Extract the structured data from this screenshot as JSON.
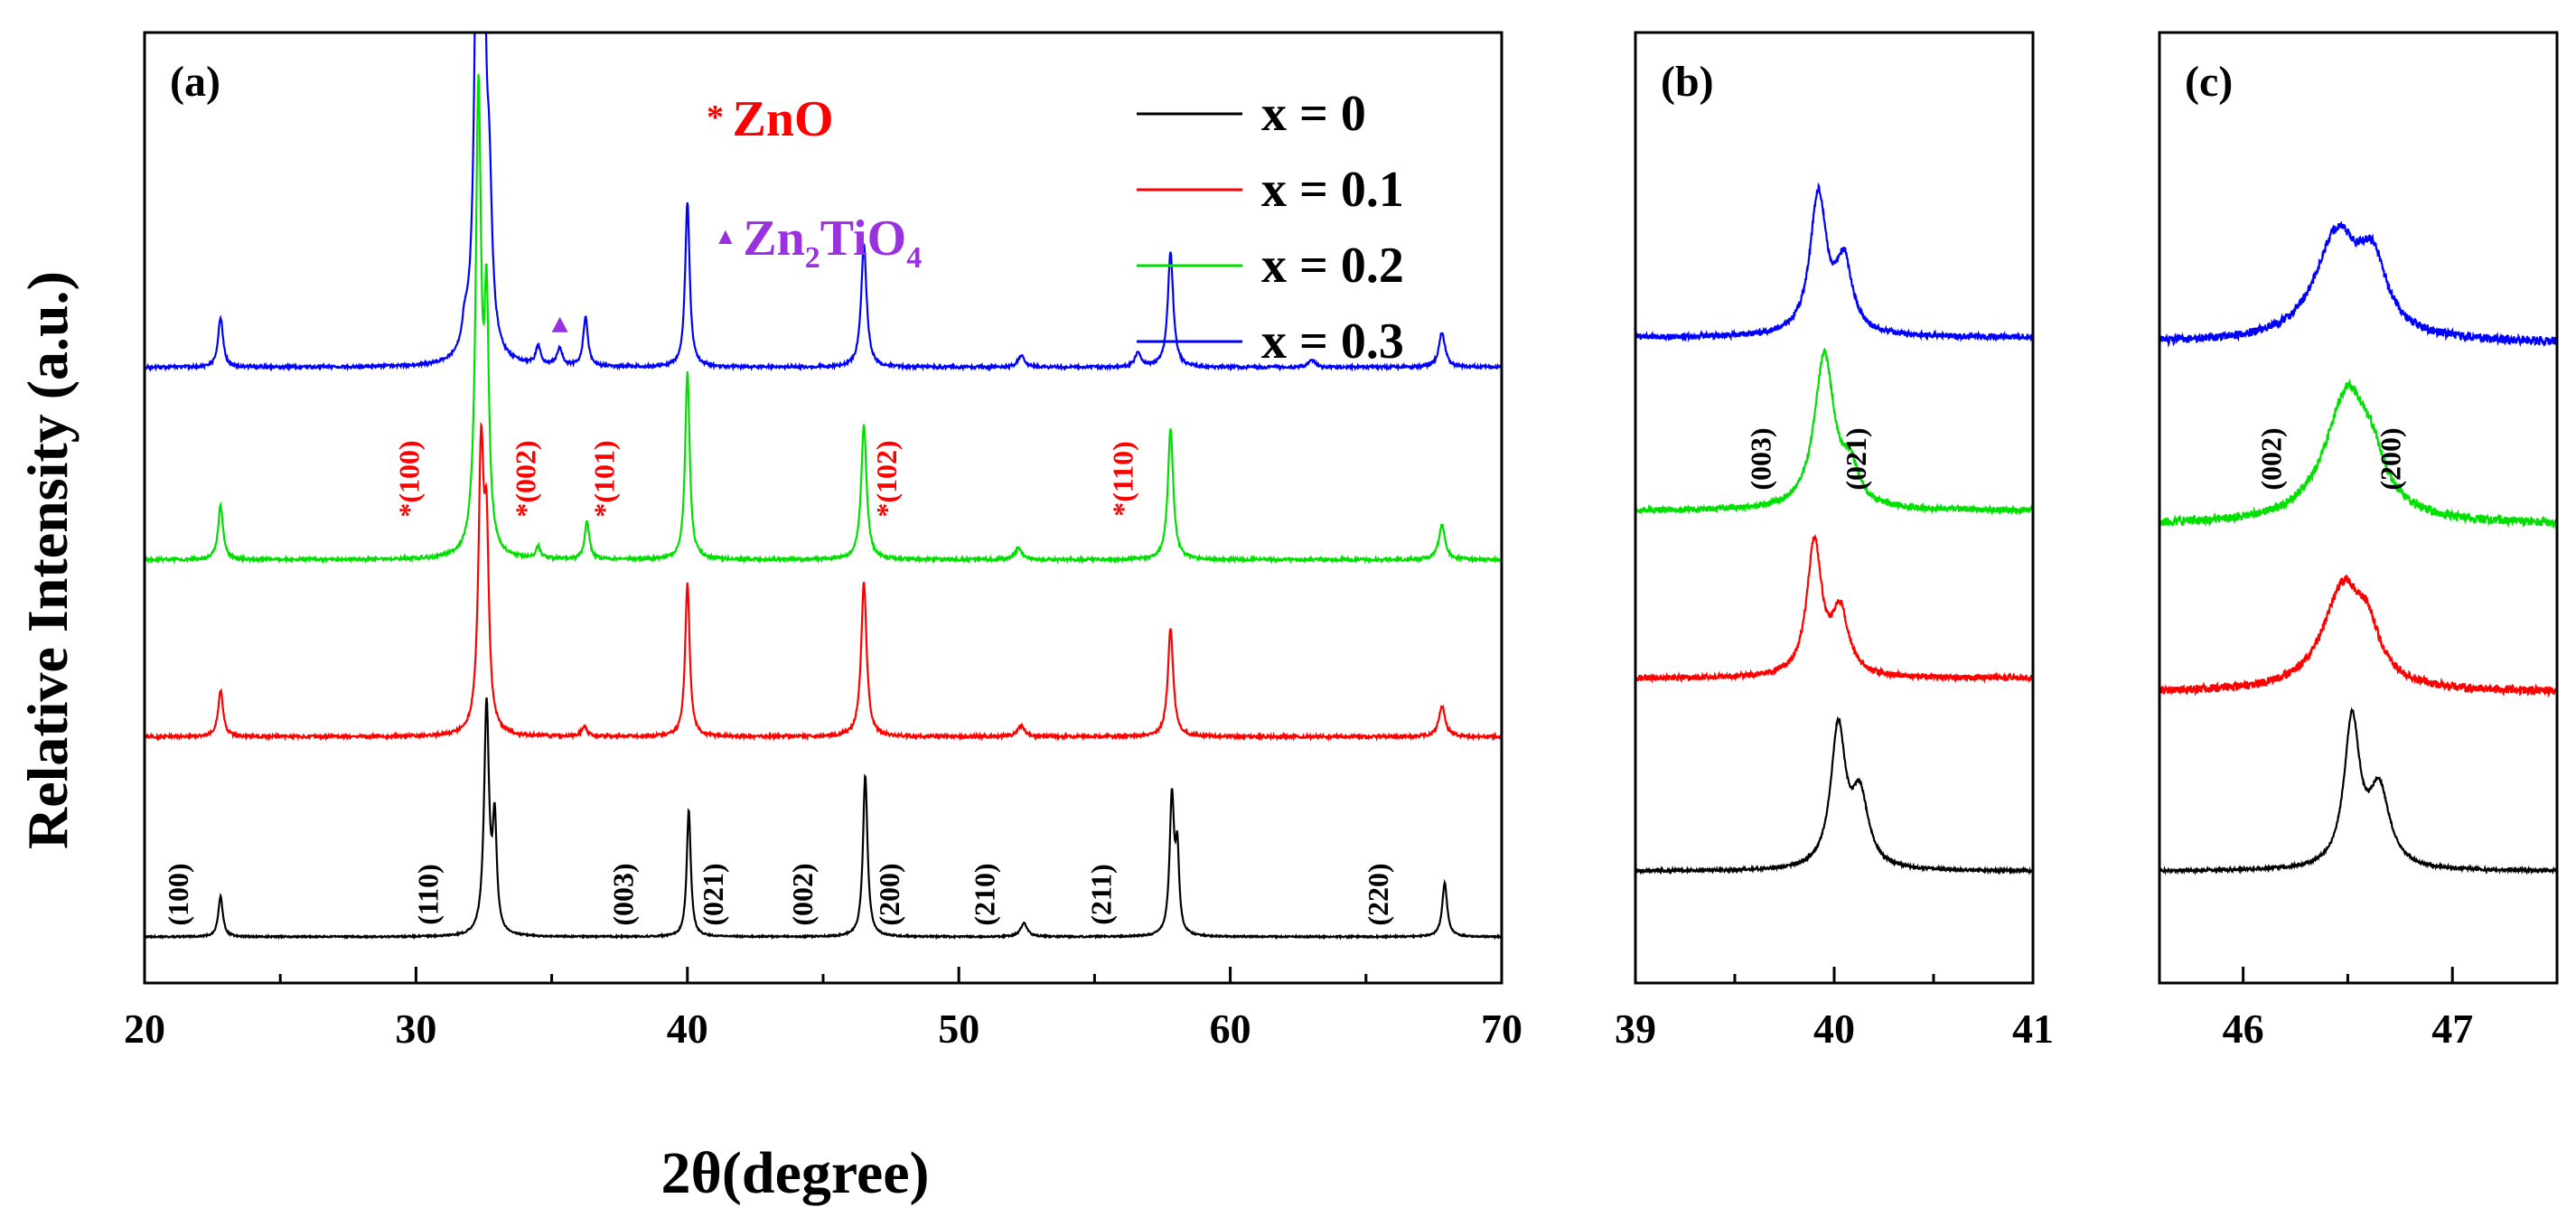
{
  "chart_data": [
    {
      "panel": "(a)",
      "type": "line",
      "xlabel": "2θ(degree)",
      "ylabel": "Relative Intensity (a.u.)",
      "xlim": [
        20,
        70
      ],
      "xticks": [
        20,
        30,
        40,
        50,
        60,
        70
      ],
      "legend": {
        "placement": "top-right",
        "entries": [
          {
            "label": "x = 0",
            "color": "#000000"
          },
          {
            "label": "x = 0.1",
            "color": "#ff0000"
          },
          {
            "label": "x = 0.2",
            "color": "#00e000"
          },
          {
            "label": "x = 0.3",
            "color": "#0000ff"
          }
        ]
      },
      "phase_legend": [
        {
          "symbol": "*",
          "label": "ZnO",
          "color": "#ff0000"
        },
        {
          "symbol": "▲",
          "label": "Zn",
          "sub1": "2",
          "mid": "TiO",
          "sub2": "4",
          "color": "#9a30e0"
        }
      ],
      "main_peak_labels": [
        {
          "x": 21.6,
          "label": "(100)"
        },
        {
          "x": 30.8,
          "label": "(110)"
        },
        {
          "x": 38.0,
          "label": "(003)"
        },
        {
          "x": 41.3,
          "label": "(021)"
        },
        {
          "x": 44.6,
          "label": "(002)"
        },
        {
          "x": 47.8,
          "label": "(200)"
        },
        {
          "x": 51.3,
          "label": "(210)"
        },
        {
          "x": 55.6,
          "label": "(211)"
        },
        {
          "x": 65.8,
          "label": "(220)"
        }
      ],
      "zno_peak_labels": [
        {
          "x": 30.1,
          "label": "*(100)"
        },
        {
          "x": 34.4,
          "label": "*(002)"
        },
        {
          "x": 37.3,
          "label": "*(101)"
        },
        {
          "x": 47.7,
          "label": "*(102)"
        },
        {
          "x": 56.4,
          "label": "*(110)"
        }
      ],
      "series": [
        {
          "name": "x = 0",
          "color": "#000000",
          "baseline": 0,
          "noise": 0.02,
          "peaks": [
            [
              22.8,
              1.05,
              0.1
            ],
            [
              32.6,
              6.0,
              0.11
            ],
            [
              32.9,
              2.8,
              0.09
            ],
            [
              40.05,
              3.3,
              0.09
            ],
            [
              46.55,
              4.2,
              0.1
            ],
            [
              52.4,
              0.35,
              0.15
            ],
            [
              57.85,
              3.6,
              0.1
            ],
            [
              58.05,
              2.0,
              0.08
            ],
            [
              67.9,
              1.4,
              0.11
            ]
          ]
        },
        {
          "name": "x = 0.1",
          "color": "#ff0000",
          "baseline": 5.2,
          "noise": 0.04,
          "peaks": [
            [
              22.8,
              1.2,
              0.11
            ],
            [
              32.4,
              7.2,
              0.12
            ],
            [
              32.6,
              4.5,
              0.1
            ],
            [
              36.2,
              0.25,
              0.12
            ],
            [
              40.0,
              4.0,
              0.1
            ],
            [
              46.5,
              4.0,
              0.12
            ],
            [
              52.3,
              0.3,
              0.15
            ],
            [
              57.8,
              2.8,
              0.12
            ],
            [
              67.8,
              0.8,
              0.14
            ]
          ]
        },
        {
          "name": "x = 0.2",
          "color": "#00e000",
          "baseline": 9.8,
          "noise": 0.04,
          "peaks": [
            [
              22.8,
              1.4,
              0.11
            ],
            [
              32.3,
              12.0,
              0.12
            ],
            [
              32.6,
              6.0,
              0.1
            ],
            [
              34.5,
              0.3,
              0.1
            ],
            [
              36.3,
              1.0,
              0.1
            ],
            [
              40.0,
              4.9,
              0.1
            ],
            [
              46.5,
              3.5,
              0.12
            ],
            [
              52.2,
              0.3,
              0.15
            ],
            [
              57.8,
              3.4,
              0.12
            ],
            [
              67.8,
              0.9,
              0.14
            ]
          ]
        },
        {
          "name": "x = 0.3",
          "color": "#0000ff",
          "baseline": 14.8,
          "noise": 0.04,
          "peaks": [
            [
              22.8,
              1.3,
              0.11
            ],
            [
              32.3,
              18.5,
              0.11
            ],
            [
              32.45,
              14.0,
              0.09
            ],
            [
              32.7,
              3.5,
              0.12
            ],
            [
              31.8,
              0.6,
              0.12
            ],
            [
              34.5,
              0.5,
              0.1
            ],
            [
              35.3,
              0.45,
              0.12
            ],
            [
              36.25,
              1.3,
              0.1
            ],
            [
              40.0,
              4.3,
              0.1
            ],
            [
              46.5,
              3.2,
              0.12
            ],
            [
              52.3,
              0.3,
              0.15
            ],
            [
              56.6,
              0.4,
              0.12
            ],
            [
              57.8,
              3.0,
              0.12
            ],
            [
              63.0,
              0.2,
              0.15
            ],
            [
              67.8,
              0.9,
              0.14
            ]
          ]
        }
      ]
    },
    {
      "panel": "(b)",
      "type": "line",
      "xlim": [
        39,
        41
      ],
      "xticks": [
        39,
        40,
        41
      ],
      "peak_labels": [
        {
          "x": 39.68,
          "label": "(003)"
        },
        {
          "x": 40.16,
          "label": "(021)"
        }
      ],
      "series": [
        {
          "name": "x = 0",
          "color": "#000000",
          "baseline": 0,
          "noise": 0.01,
          "peaks": [
            [
              40.02,
              1.0,
              0.045
            ],
            [
              40.13,
              0.5,
              0.05
            ]
          ]
        },
        {
          "name": "x = 0.1",
          "color": "#ff0000",
          "baseline": 1.38,
          "noise": 0.02,
          "peaks": [
            [
              39.9,
              0.95,
              0.045
            ],
            [
              40.03,
              0.45,
              0.05
            ]
          ]
        },
        {
          "name": "x = 0.2",
          "color": "#00e000",
          "baseline": 2.58,
          "noise": 0.02,
          "peaks": [
            [
              39.95,
              1.1,
              0.06
            ],
            [
              40.08,
              0.25,
              0.05
            ]
          ]
        },
        {
          "name": "x = 0.3",
          "color": "#0000ff",
          "baseline": 3.82,
          "noise": 0.02,
          "peaks": [
            [
              39.92,
              1.0,
              0.05
            ],
            [
              40.05,
              0.5,
              0.05
            ]
          ]
        }
      ]
    },
    {
      "panel": "(c)",
      "type": "line",
      "xlim": [
        45.6,
        47.5
      ],
      "xticks": [
        46,
        47
      ],
      "peak_labels": [
        {
          "x": 46.18,
          "label": "(002)"
        },
        {
          "x": 46.75,
          "label": "(200)"
        }
      ],
      "series": [
        {
          "name": "x = 0",
          "color": "#000000",
          "baseline": 0,
          "noise": 0.01,
          "peaks": [
            [
              46.52,
              1.05,
              0.045
            ],
            [
              46.65,
              0.55,
              0.06
            ]
          ]
        },
        {
          "name": "x = 0.1",
          "color": "#ff0000",
          "baseline": 1.28,
          "noise": 0.03,
          "peaks": [
            [
              46.48,
              0.75,
              0.12
            ],
            [
              46.6,
              0.25,
              0.06
            ]
          ]
        },
        {
          "name": "x = 0.2",
          "color": "#00e000",
          "baseline": 2.48,
          "noise": 0.03,
          "peaks": [
            [
              46.5,
              0.95,
              0.13
            ],
            [
              46.62,
              0.2,
              0.06
            ]
          ]
        },
        {
          "name": "x = 0.3",
          "color": "#0000ff",
          "baseline": 3.78,
          "noise": 0.03,
          "peaks": [
            [
              46.45,
              0.75,
              0.13
            ],
            [
              46.62,
              0.45,
              0.08
            ]
          ]
        }
      ]
    }
  ]
}
